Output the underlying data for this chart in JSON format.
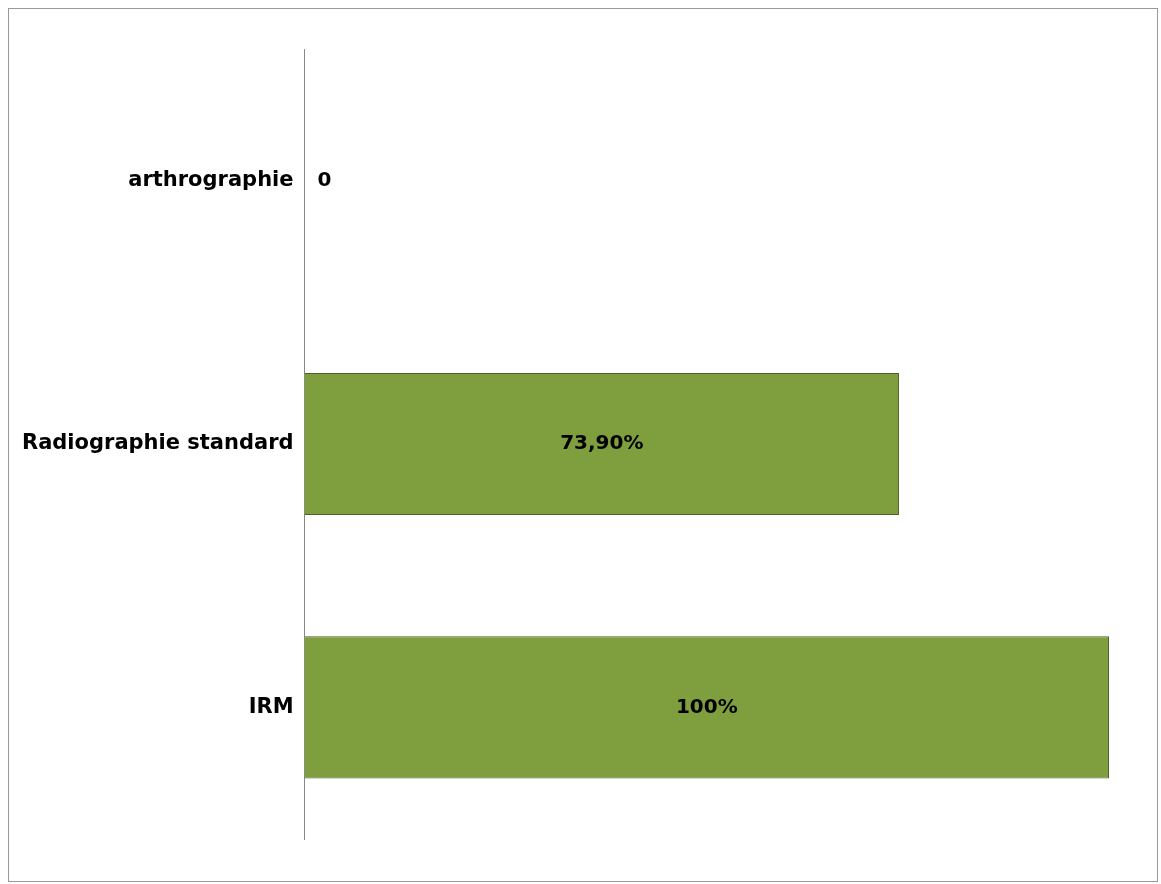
{
  "chart_data": {
    "type": "bar",
    "orientation": "horizontal",
    "categories": [
      "arthrographie",
      "Radiographie standard",
      "IRM"
    ],
    "values": [
      0,
      73.9,
      100
    ],
    "value_labels": [
      "0",
      "73,90%",
      "100%"
    ],
    "color": "#7f9f3f",
    "legend": false
  }
}
